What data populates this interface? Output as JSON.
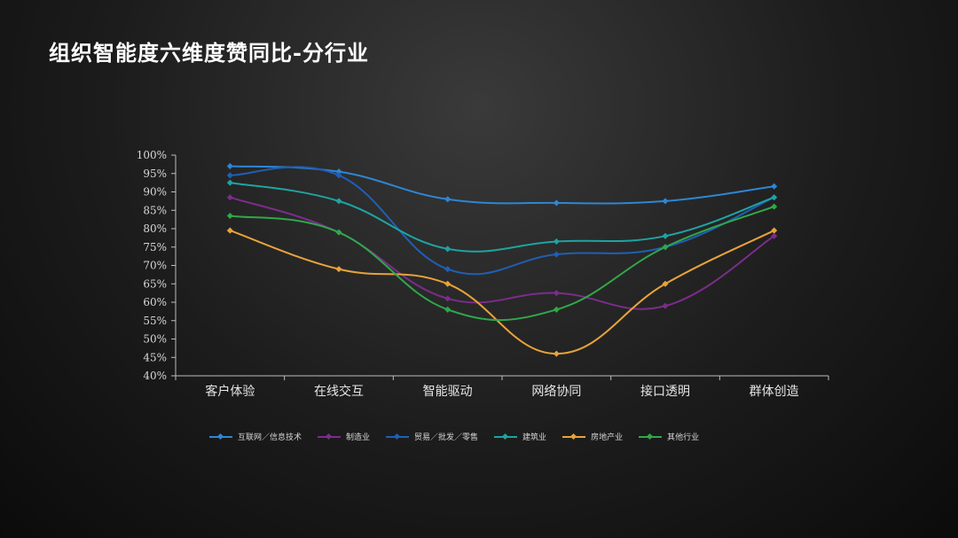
{
  "title": "组织智能度六维度赞同比-分行业",
  "chart_data": {
    "type": "line",
    "title": "组织智能度六维度赞同比-分行业",
    "categories": [
      "客户体验",
      "在线交互",
      "智能驱动",
      "网络协同",
      "接口透明",
      "群体创造"
    ],
    "y_ticks": [
      "100%",
      "95%",
      "90%",
      "85%",
      "80%",
      "75%",
      "70%",
      "65%",
      "60%",
      "55%",
      "50%",
      "45%",
      "40%"
    ],
    "ylim": [
      40,
      100
    ],
    "grid": false,
    "legend_position": "bottom",
    "series": [
      {
        "name": "互联网／信息技术",
        "color": "#2e86d4",
        "values": [
          97,
          95.5,
          88,
          87,
          87.5,
          91.5
        ]
      },
      {
        "name": "制造业",
        "color": "#7b2d8b",
        "values": [
          88.5,
          79,
          61,
          62.5,
          59,
          78
        ]
      },
      {
        "name": "贸易／批发／零售",
        "color": "#1f5fb5",
        "values": [
          94.5,
          94.5,
          69,
          73,
          75,
          88.5
        ]
      },
      {
        "name": "建筑业",
        "color": "#1fa3a3",
        "values": [
          92.5,
          87.5,
          74.5,
          76.5,
          78,
          88.5
        ]
      },
      {
        "name": "房地产业",
        "color": "#e8a33a",
        "values": [
          79.5,
          69,
          65,
          46,
          65,
          79.5
        ]
      },
      {
        "name": "其他行业",
        "color": "#2fa84a",
        "values": [
          83.5,
          79,
          58,
          58,
          75,
          86
        ]
      }
    ]
  }
}
